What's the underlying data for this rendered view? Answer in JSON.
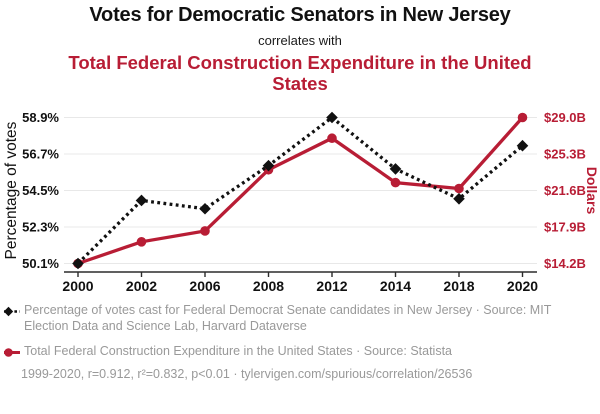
{
  "header": {
    "title": "Votes for Democratic Senators in New Jersey",
    "connector": "correlates with",
    "subtitle": "Total Federal Construction Expenditure in the United States"
  },
  "colors": {
    "accent_red": "#b81d35",
    "text_black": "#111111",
    "legend_gray": "#999999",
    "grid_gray": "#e8e8e8",
    "axis_dark": "#2b2b2b"
  },
  "chart_data": {
    "type": "line",
    "x_labels": [
      "2000",
      "2002",
      "2006",
      "2008",
      "2012",
      "2014",
      "2018",
      "2020"
    ],
    "series": [
      {
        "name": "Percentage of votes cast for Federal Democrat Senate candidates in New Jersey",
        "axis": "left",
        "color": "#111111",
        "line_style": "dashed",
        "marker": "diamond",
        "values": [
          50.1,
          53.9,
          53.4,
          56.0,
          58.9,
          55.8,
          54.0,
          57.2
        ]
      },
      {
        "name": "Total Federal Construction Expenditure in the United States",
        "axis": "right",
        "color": "#b81d35",
        "line_style": "solid",
        "marker": "circle",
        "values": [
          14.2,
          16.4,
          17.5,
          23.7,
          26.9,
          22.4,
          21.8,
          29.0
        ]
      }
    ],
    "left_axis": {
      "label": "Percentage of votes",
      "min": 50.1,
      "max": 58.9,
      "tick_labels": [
        "50.1%",
        "52.3%",
        "54.5%",
        "56.7%",
        "58.9%"
      ]
    },
    "right_axis": {
      "label": "Dollars",
      "min": 14.2,
      "max": 29.0,
      "tick_labels": [
        "$14.2B",
        "$17.9B",
        "$21.6B",
        "$25.3B",
        "$29.0B"
      ]
    },
    "grid": "horizontal",
    "legend_position": "bottom-left"
  },
  "legend": {
    "items": [
      {
        "label": "Percentage of votes cast for Federal Democrat Senate candidates in New Jersey · Source: MIT Election Data and Science Lab, Harvard Dataverse"
      },
      {
        "label": "Total Federal Construction Expenditure in the United States · Source: Statista"
      }
    ]
  },
  "footer": {
    "stats": "1999-2020, r=0.912, r²=0.832, p<0.01 · tylervigen.com/spurious/correlation/26536"
  }
}
